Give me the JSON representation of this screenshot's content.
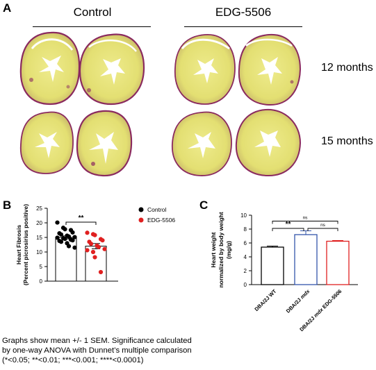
{
  "panel_a": {
    "letter": "A",
    "groups": [
      "Control",
      "EDG-5506"
    ],
    "rows": [
      "12 months",
      "15 months"
    ],
    "colors": {
      "tissue": "#e5e37a",
      "fibrosis": "#8a2a5f",
      "lumen": "#ffffff"
    }
  },
  "panel_b": {
    "letter": "B",
    "significance": "**"
  },
  "panel_c": {
    "letter": "C",
    "significance": [
      "**",
      "ns",
      "ns"
    ]
  },
  "caption": {
    "line1": "Graphs show mean +/- 1 SEM. Significance calculated",
    "line2": "by one-way ANOVA with Dunnet’s multiple comparison",
    "line3": "(*<0.05; **<0.01; ***<0.001; ****<0.0001)"
  },
  "chart_data": [
    {
      "type": "bar",
      "ylabel": "Heart Fibrosis\n(Percent picrosirius positive)",
      "ylim": [
        0,
        25
      ],
      "yticks": [
        0,
        5,
        10,
        15,
        20,
        25
      ],
      "categories": [
        "Control",
        "EDG-5506"
      ],
      "series": [
        {
          "name": "Control",
          "color": "#000000",
          "mean": 15.0,
          "sem": 0.5,
          "points": [
            20.1,
            18.3,
            17.8,
            17.5,
            16.7,
            16.4,
            16.0,
            15.6,
            15.3,
            15.1,
            14.9,
            14.7,
            14.5,
            14.2,
            14.0,
            13.8,
            13.5,
            13.0,
            12.0,
            11.5
          ]
        },
        {
          "name": "EDG-5506",
          "color": "#e02020",
          "mean": 12.0,
          "sem": 0.9,
          "points": [
            16.6,
            16.1,
            15.8,
            14.4,
            14.0,
            13.5,
            12.8,
            12.2,
            11.7,
            11.0,
            10.6,
            10.0,
            8.2,
            3.1
          ]
        }
      ],
      "legend_position": "top-right",
      "grid": false
    },
    {
      "type": "bar",
      "ylabel": "Heart weight\nnormalized by body weight\n(mg/g)",
      "ylim": [
        0,
        10
      ],
      "yticks": [
        0,
        2,
        4,
        6,
        8,
        10
      ],
      "categories": [
        "DBA/2J WT",
        "DBA/2J mdx",
        "DBA/2J mdx EDG-5506"
      ],
      "category_parts": [
        {
          "plain": "DBA/2J WT",
          "italic": "",
          "suffix": ""
        },
        {
          "plain": "DBA/2J ",
          "italic": "mdx",
          "suffix": ""
        },
        {
          "plain": "DBA/2J ",
          "italic": "mdx",
          "suffix": " EDG-5506"
        }
      ],
      "values": [
        5.4,
        7.2,
        6.25
      ],
      "errors": [
        0.15,
        0.55,
        0.1
      ],
      "colors": [
        "#000000",
        "#3355aa",
        "#e02020"
      ],
      "comparisons": [
        {
          "a": 0,
          "b": 1,
          "label": "**"
        },
        {
          "a": 1,
          "b": 2,
          "label": "ns"
        },
        {
          "a": 0,
          "b": 2,
          "label": "ns"
        }
      ],
      "grid": false
    }
  ]
}
